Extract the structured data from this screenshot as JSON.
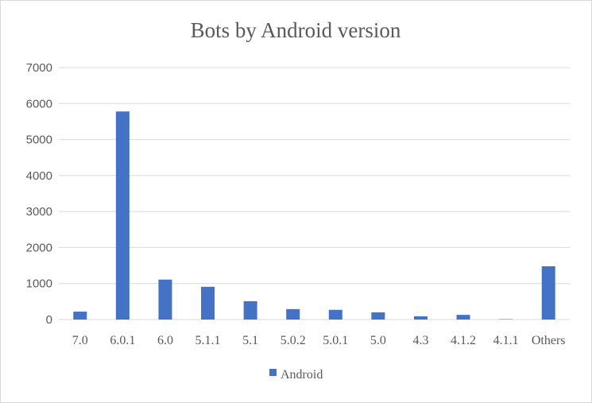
{
  "chart_data": {
    "type": "bar",
    "title": "Bots by Android version",
    "xlabel": "",
    "ylabel": "",
    "categories": [
      "7.0",
      "6.0.1",
      "6.0",
      "5.1.1",
      "5.1",
      "5.0.2",
      "5.0.1",
      "5.0",
      "4.3",
      "4.1.2",
      "4.1.1",
      "Others"
    ],
    "series": [
      {
        "name": "Android",
        "color": "#4472C4",
        "values": [
          220,
          5780,
          1110,
          910,
          510,
          290,
          270,
          200,
          90,
          130,
          10,
          1480
        ]
      }
    ],
    "ylim": [
      0,
      7000
    ],
    "yticks": [
      0,
      1000,
      2000,
      3000,
      4000,
      5000,
      6000,
      7000
    ],
    "grid": true,
    "legend_position": "bottom"
  }
}
